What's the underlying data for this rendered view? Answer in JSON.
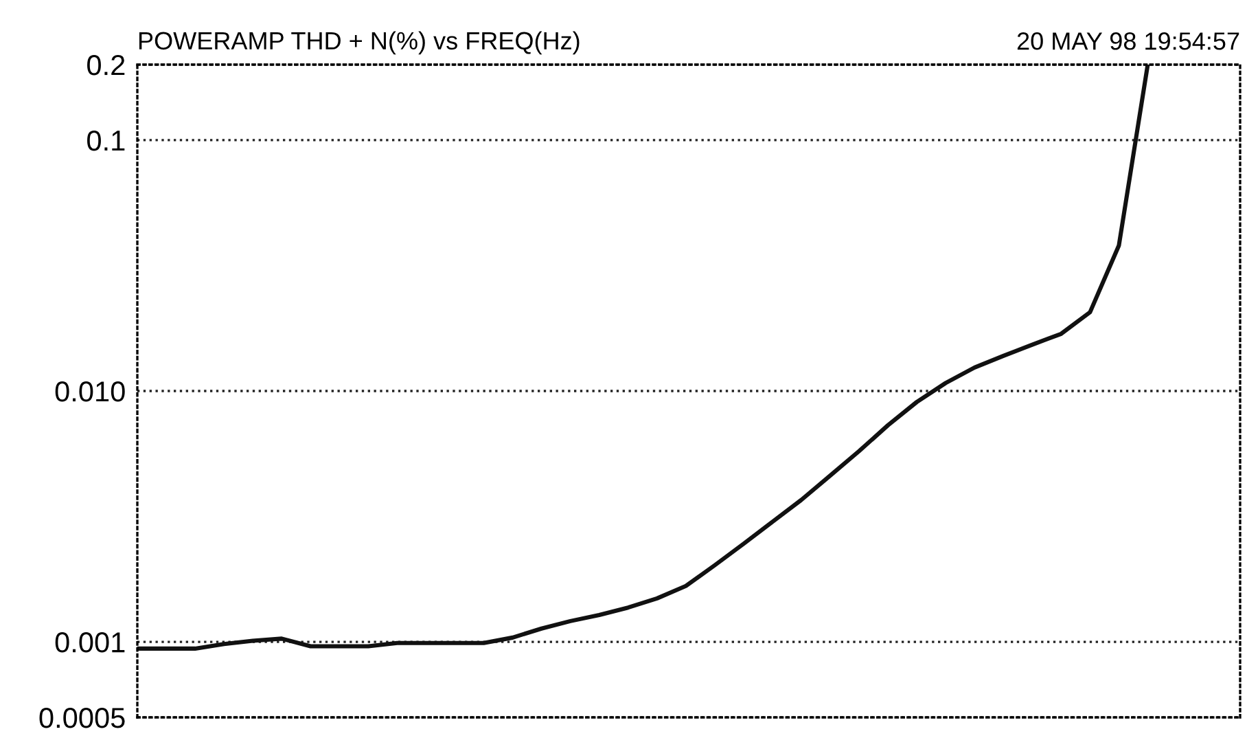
{
  "chart_data": {
    "type": "line",
    "title": "POWERAMP THD + N(%) vs FREQ(Hz)",
    "annotations": [
      "20 MAY 98 19:54:57"
    ],
    "categories": [
      null,
      null,
      null,
      null,
      null,
      null,
      null,
      null,
      null,
      null,
      null,
      null,
      null,
      null,
      null,
      null,
      null,
      null,
      null,
      null,
      null,
      null,
      null,
      null,
      null,
      null,
      null,
      null,
      null,
      null,
      null,
      null,
      null,
      null,
      null,
      null
    ],
    "series": [
      {
        "color": "#111111",
        "values": [
          0.00094,
          0.00094,
          0.00094,
          0.00098,
          0.00101,
          0.00103,
          0.00096,
          0.00096,
          0.00096,
          0.00099,
          0.00099,
          0.00099,
          0.00099,
          0.00104,
          0.00113,
          0.00121,
          0.00128,
          0.00137,
          0.00149,
          0.00167,
          0.00202,
          0.00246,
          0.00301,
          0.00368,
          0.0046,
          0.00576,
          0.0073,
          0.00904,
          0.01076,
          0.0124,
          0.0138,
          0.0153,
          0.0169,
          0.0206,
          0.038,
          0.2
        ]
      }
    ],
    "log": "y",
    "ylim": [
      0.0005,
      0.2
    ],
    "yticks": [
      0.2,
      0.1,
      {
        "value": 0.01,
        "label": "0.010"
      },
      0.001,
      0.0005
    ],
    "grid": "y",
    "marker": "none",
    "line_style": "solid",
    "tick_labels": "y"
  }
}
